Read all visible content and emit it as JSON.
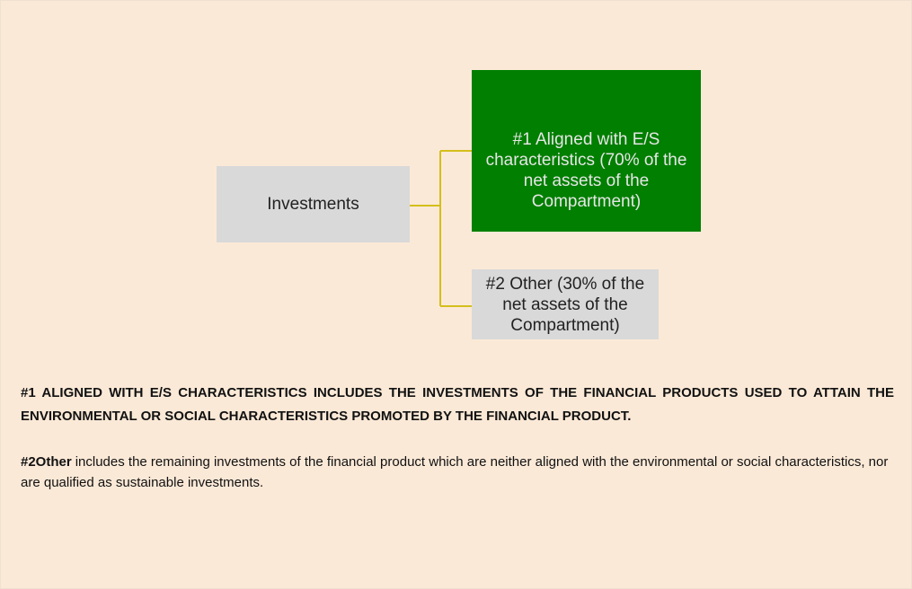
{
  "nodes": [
    {
      "label": "Investments"
    },
    {
      "label": "#1 Aligned with E/S characteristics (70% of the net assets of the Compartment)"
    },
    {
      "label": "#2 Other (30% of the net assets of the Compartment)"
    }
  ],
  "notes": [
    {
      "text": "#1 ALIGNED WITH E/S CHARACTERISTICS INCLUDES THE INVESTMENTS OF THE FINANCIAL PRODUCTS USED TO ATTAIN THE ENVIRONMENTAL OR SOCIAL CHARACTERISTICS PROMOTED BY THE FINANCIAL PRODUCT."
    },
    {
      "term": "#2Other",
      "text": "includes the remaining investments of the financial product which are neither aligned with the environmental or social characteristics, nor are qualified as sustainable investments."
    }
  ]
}
